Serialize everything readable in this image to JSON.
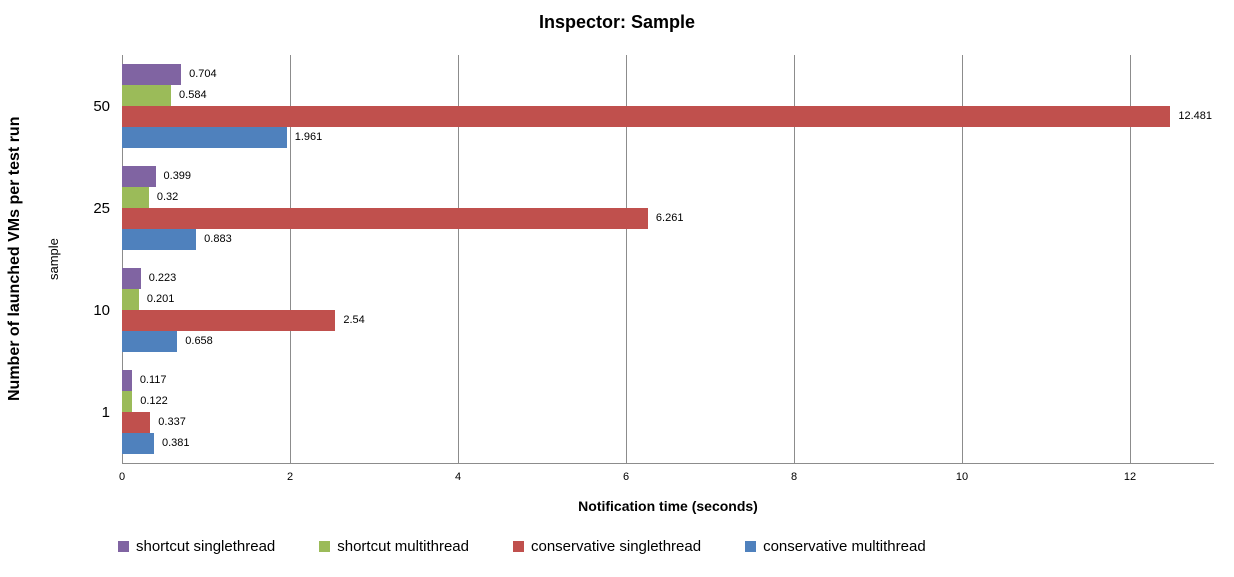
{
  "title": "Inspector: Sample",
  "axes": {
    "x_label": "Notification time (seconds)",
    "y_label": "Number of launched VMs per test run",
    "y_sublabel": "sample",
    "x_ticks": [
      "0",
      "2",
      "4",
      "6",
      "8",
      "10",
      "12"
    ]
  },
  "colors": {
    "gridline": "#8c8c8c",
    "axis_line": "#8c8c8c",
    "text": "#000000"
  },
  "chart_data": {
    "type": "bar",
    "orientation": "horizontal",
    "title": "Inspector: Sample",
    "xlabel": "Notification time (seconds)",
    "ylabel": "Number of launched VMs per test run",
    "y_group_label": "sample",
    "categories": [
      "50",
      "25",
      "10",
      "1"
    ],
    "series": [
      {
        "name": "shortcut singlethread",
        "color": "#8064A2",
        "values": [
          0.704,
          0.399,
          0.223,
          0.117
        ],
        "labels": [
          "0.704",
          "0.399",
          "0.223",
          "0.117"
        ]
      },
      {
        "name": "shortcut multithread",
        "color": "#9BBB59",
        "values": [
          0.584,
          0.32,
          0.201,
          0.122
        ],
        "labels": [
          "0.584",
          "0.32",
          "0.201",
          "0.122"
        ]
      },
      {
        "name": "conservative singlethread",
        "color": "#C0504D",
        "values": [
          12.481,
          6.261,
          2.54,
          0.337
        ],
        "labels": [
          "12.481",
          "6.261",
          "2.54",
          "0.337"
        ]
      },
      {
        "name": "conservative multithread",
        "color": "#4F81BD",
        "values": [
          1.961,
          0.883,
          0.658,
          0.381
        ],
        "labels": [
          "1.961",
          "0.883",
          "0.658",
          "0.381"
        ]
      }
    ],
    "xlim": [
      0,
      13
    ],
    "x_tick_values": [
      0,
      2,
      4,
      6,
      8,
      10,
      12
    ],
    "grid": true,
    "legend_position": "bottom"
  }
}
